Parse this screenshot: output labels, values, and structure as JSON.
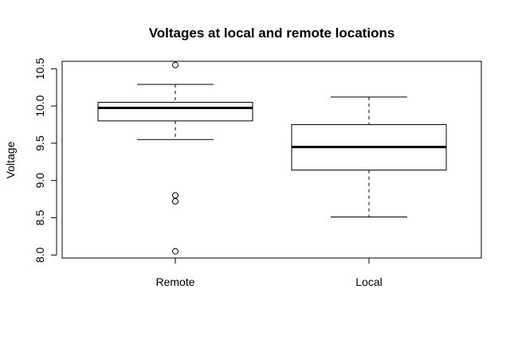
{
  "chart_data": {
    "type": "box",
    "title": "Voltages at local and remote locations",
    "xlabel": "",
    "ylabel": "Voltage",
    "ylim": [
      7.96,
      10.6
    ],
    "yticks": [
      8.0,
      8.5,
      9.0,
      9.5,
      10.0,
      10.5
    ],
    "ytick_labels": [
      "8.0",
      "8.5",
      "9.0",
      "9.5",
      "10.0",
      "10.5"
    ],
    "categories": [
      "Remote",
      "Local"
    ],
    "boxes": [
      {
        "name": "Remote",
        "whisker_low": 9.55,
        "q1": 9.8,
        "median": 9.975,
        "q3": 10.05,
        "whisker_high": 10.29,
        "outliers": [
          10.55,
          8.8,
          8.72,
          8.05
        ]
      },
      {
        "name": "Local",
        "whisker_low": 8.51,
        "q1": 9.14,
        "median": 9.45,
        "q3": 9.75,
        "whisker_high": 10.12,
        "outliers": []
      }
    ]
  }
}
